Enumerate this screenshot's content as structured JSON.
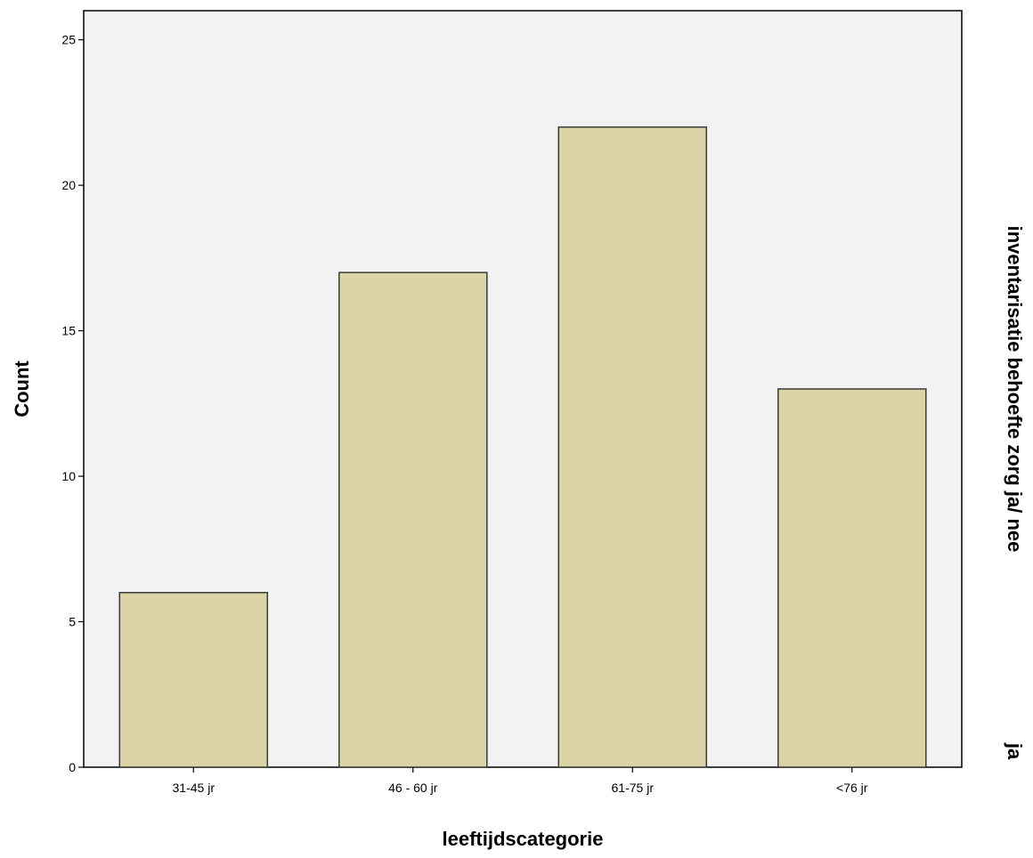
{
  "chart_data": {
    "type": "bar",
    "categories": [
      "31-45 jr",
      "46 - 60 jr",
      "61-75 jr",
      "<76 jr"
    ],
    "values": [
      6,
      17,
      22,
      13
    ],
    "xlabel": "leeftijdscategorie",
    "ylabel": "Count",
    "ylim": [
      0,
      26
    ],
    "yticks": [
      0,
      5,
      10,
      15,
      20,
      25
    ],
    "panel_variable": "inventarisatie behoefte zorg ja/ nee",
    "panel_value": "ja",
    "grid": false,
    "legend": "none",
    "colors": {
      "bar_fill": "#dbd4a6",
      "bar_stroke": "#3a3a3a",
      "plot_background": "#f2f2f2",
      "axis": "#000000"
    }
  }
}
